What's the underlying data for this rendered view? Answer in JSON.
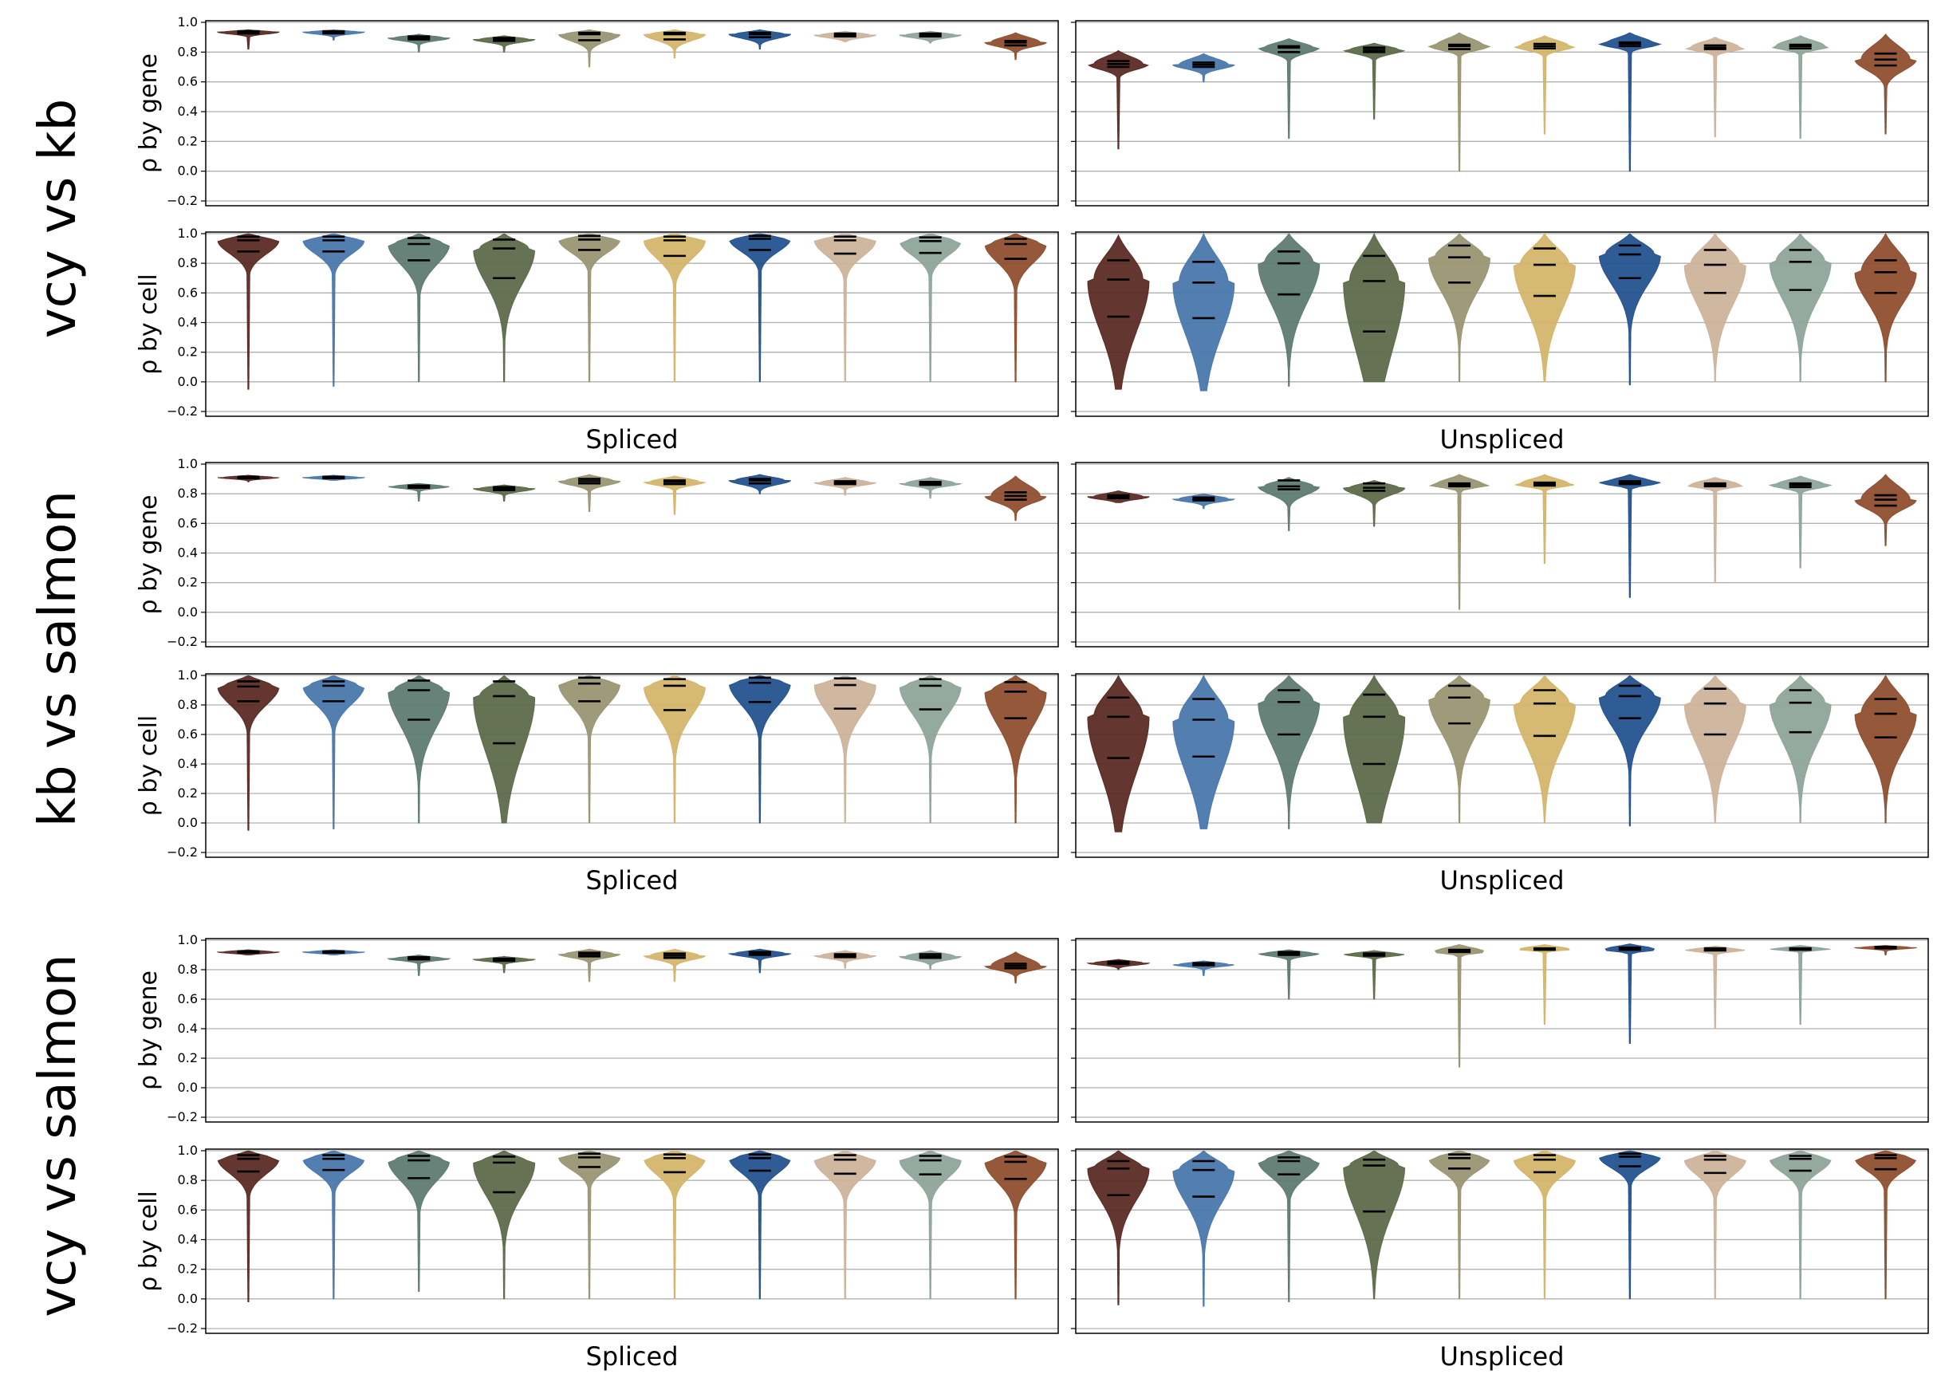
{
  "figure": {
    "colors": [
      "#5b2b24",
      "#4a78ac",
      "#5f7b72",
      "#5d6b4b",
      "#9a9673",
      "#d4b56a",
      "#24538e",
      "#cdb39b",
      "#8fa59a",
      "#8f4f2f"
    ],
    "ytick_labels": [
      "1.0",
      "0.8",
      "0.6",
      "0.4",
      "0.2",
      "0.0",
      "−0.2"
    ]
  },
  "chart_data": [
    {
      "type": "violin",
      "group": "vcy vs kb",
      "ylabel": "ρ by gene",
      "xlabel": "",
      "ylim": [
        -0.2,
        1.0
      ],
      "grid": true,
      "violins": [
        {
          "min": 0.82,
          "q25": 0.925,
          "median": 0.935,
          "q75": 0.94,
          "max": 0.95
        },
        {
          "min": 0.88,
          "q25": 0.925,
          "median": 0.935,
          "q75": 0.94,
          "max": 0.95
        },
        {
          "min": 0.8,
          "q25": 0.885,
          "median": 0.895,
          "q75": 0.905,
          "max": 0.92
        },
        {
          "min": 0.8,
          "q25": 0.875,
          "median": 0.885,
          "q75": 0.895,
          "max": 0.91
        },
        {
          "min": 0.7,
          "q25": 0.88,
          "median": 0.92,
          "q75": 0.93,
          "max": 0.95
        },
        {
          "min": 0.76,
          "q25": 0.885,
          "median": 0.92,
          "q75": 0.93,
          "max": 0.95
        },
        {
          "min": 0.82,
          "q25": 0.9,
          "median": 0.92,
          "q75": 0.93,
          "max": 0.95
        },
        {
          "min": 0.87,
          "q25": 0.905,
          "median": 0.915,
          "q75": 0.925,
          "max": 0.94
        },
        {
          "min": 0.86,
          "q25": 0.905,
          "median": 0.915,
          "q75": 0.925,
          "max": 0.94
        },
        {
          "min": 0.75,
          "q25": 0.845,
          "median": 0.865,
          "q75": 0.875,
          "max": 0.93
        }
      ]
    },
    {
      "type": "violin",
      "group": "vcy vs kb",
      "ylabel": "ρ by gene",
      "xlabel": "",
      "ylim": [
        -0.2,
        1.0
      ],
      "grid": true,
      "violins": [
        {
          "min": 0.15,
          "q25": 0.7,
          "median": 0.72,
          "q75": 0.74,
          "max": 0.81
        },
        {
          "min": 0.6,
          "q25": 0.7,
          "median": 0.715,
          "q75": 0.73,
          "max": 0.79
        },
        {
          "min": 0.22,
          "q25": 0.8,
          "median": 0.83,
          "q75": 0.84,
          "max": 0.89
        },
        {
          "min": 0.35,
          "q25": 0.8,
          "median": 0.815,
          "q75": 0.83,
          "max": 0.86
        },
        {
          "min": 0.0,
          "q25": 0.82,
          "median": 0.84,
          "q75": 0.85,
          "max": 0.93
        },
        {
          "min": 0.25,
          "q25": 0.825,
          "median": 0.84,
          "q75": 0.855,
          "max": 0.91
        },
        {
          "min": 0.0,
          "q25": 0.84,
          "median": 0.855,
          "q75": 0.865,
          "max": 0.93
        },
        {
          "min": 0.23,
          "q25": 0.82,
          "median": 0.83,
          "q75": 0.845,
          "max": 0.9
        },
        {
          "min": 0.22,
          "q25": 0.825,
          "median": 0.84,
          "q75": 0.85,
          "max": 0.91
        },
        {
          "min": 0.25,
          "q25": 0.71,
          "median": 0.75,
          "q75": 0.79,
          "max": 0.92
        }
      ]
    },
    {
      "type": "violin",
      "group": "vcy vs kb",
      "ylabel": "ρ by cell",
      "xlabel": "Spliced",
      "ylim": [
        -0.2,
        1.0
      ],
      "grid": true,
      "violins": [
        {
          "min": -0.05,
          "q25": 0.88,
          "median": 0.955,
          "q75": 0.98,
          "max": 1.0
        },
        {
          "min": -0.03,
          "q25": 0.88,
          "median": 0.955,
          "q75": 0.98,
          "max": 1.0
        },
        {
          "min": 0.0,
          "q25": 0.82,
          "median": 0.93,
          "q75": 0.97,
          "max": 1.0
        },
        {
          "min": 0.0,
          "q25": 0.7,
          "median": 0.9,
          "q75": 0.96,
          "max": 1.0
        },
        {
          "min": 0.0,
          "q25": 0.89,
          "median": 0.96,
          "q75": 0.985,
          "max": 1.0
        },
        {
          "min": 0.0,
          "q25": 0.85,
          "median": 0.955,
          "q75": 0.98,
          "max": 1.0
        },
        {
          "min": 0.0,
          "q25": 0.89,
          "median": 0.965,
          "q75": 0.985,
          "max": 1.0
        },
        {
          "min": 0.0,
          "q25": 0.865,
          "median": 0.955,
          "q75": 0.98,
          "max": 1.0
        },
        {
          "min": 0.0,
          "q25": 0.87,
          "median": 0.95,
          "q75": 0.975,
          "max": 1.0
        },
        {
          "min": 0.0,
          "q25": 0.83,
          "median": 0.93,
          "q75": 0.965,
          "max": 1.0
        }
      ]
    },
    {
      "type": "violin",
      "group": "vcy vs kb",
      "ylabel": "ρ by cell",
      "xlabel": "Unspliced",
      "ylim": [
        -0.2,
        1.0
      ],
      "grid": true,
      "violins": [
        {
          "min": -0.05,
          "q25": 0.44,
          "median": 0.69,
          "q75": 0.82,
          "max": 0.99
        },
        {
          "min": -0.06,
          "q25": 0.43,
          "median": 0.67,
          "q75": 0.81,
          "max": 1.0
        },
        {
          "min": -0.03,
          "q25": 0.59,
          "median": 0.8,
          "q75": 0.88,
          "max": 1.0
        },
        {
          "min": 0.0,
          "q25": 0.34,
          "median": 0.68,
          "q75": 0.85,
          "max": 1.0
        },
        {
          "min": 0.0,
          "q25": 0.67,
          "median": 0.84,
          "q75": 0.92,
          "max": 1.0
        },
        {
          "min": 0.0,
          "q25": 0.58,
          "median": 0.79,
          "q75": 0.9,
          "max": 1.0
        },
        {
          "min": -0.02,
          "q25": 0.7,
          "median": 0.86,
          "q75": 0.92,
          "max": 1.0
        },
        {
          "min": 0.0,
          "q25": 0.6,
          "median": 0.79,
          "q75": 0.89,
          "max": 1.0
        },
        {
          "min": 0.0,
          "q25": 0.62,
          "median": 0.81,
          "q75": 0.89,
          "max": 1.0
        },
        {
          "min": 0.0,
          "q25": 0.6,
          "median": 0.74,
          "q75": 0.82,
          "max": 1.0
        }
      ]
    },
    {
      "type": "violin",
      "group": "kb vs salmon",
      "ylabel": "ρ by gene",
      "xlabel": "",
      "ylim": [
        -0.2,
        1.0
      ],
      "grid": true,
      "violins": [
        {
          "min": 0.88,
          "q25": 0.905,
          "median": 0.91,
          "q75": 0.915,
          "max": 0.925
        },
        {
          "min": 0.89,
          "q25": 0.905,
          "median": 0.91,
          "q75": 0.915,
          "max": 0.925
        },
        {
          "min": 0.75,
          "q25": 0.84,
          "median": 0.85,
          "q75": 0.855,
          "max": 0.87
        },
        {
          "min": 0.75,
          "q25": 0.825,
          "median": 0.835,
          "q75": 0.845,
          "max": 0.86
        },
        {
          "min": 0.68,
          "q25": 0.87,
          "median": 0.885,
          "q75": 0.9,
          "max": 0.93
        },
        {
          "min": 0.66,
          "q25": 0.865,
          "median": 0.88,
          "q75": 0.89,
          "max": 0.92
        },
        {
          "min": 0.8,
          "q25": 0.87,
          "median": 0.89,
          "q75": 0.9,
          "max": 0.93
        },
        {
          "min": 0.79,
          "q25": 0.865,
          "median": 0.875,
          "q75": 0.885,
          "max": 0.91
        },
        {
          "min": 0.77,
          "q25": 0.86,
          "median": 0.87,
          "q75": 0.88,
          "max": 0.91
        },
        {
          "min": 0.62,
          "q25": 0.76,
          "median": 0.785,
          "q75": 0.81,
          "max": 0.92
        }
      ]
    },
    {
      "type": "violin",
      "group": "kb vs salmon",
      "ylabel": "ρ by gene",
      "xlabel": "",
      "ylim": [
        -0.2,
        1.0
      ],
      "grid": true,
      "violins": [
        {
          "min": 0.74,
          "q25": 0.77,
          "median": 0.78,
          "q75": 0.79,
          "max": 0.82
        },
        {
          "min": 0.7,
          "q25": 0.755,
          "median": 0.765,
          "q75": 0.775,
          "max": 0.8
        },
        {
          "min": 0.55,
          "q25": 0.83,
          "median": 0.85,
          "q75": 0.89,
          "max": 0.91
        },
        {
          "min": 0.58,
          "q25": 0.82,
          "median": 0.84,
          "q75": 0.87,
          "max": 0.89
        },
        {
          "min": 0.02,
          "q25": 0.85,
          "median": 0.86,
          "q75": 0.87,
          "max": 0.93
        },
        {
          "min": 0.33,
          "q25": 0.855,
          "median": 0.865,
          "q75": 0.875,
          "max": 0.93
        },
        {
          "min": 0.1,
          "q25": 0.865,
          "median": 0.875,
          "q75": 0.885,
          "max": 0.93
        },
        {
          "min": 0.2,
          "q25": 0.85,
          "median": 0.86,
          "q75": 0.87,
          "max": 0.91
        },
        {
          "min": 0.3,
          "q25": 0.845,
          "median": 0.86,
          "q75": 0.87,
          "max": 0.92
        },
        {
          "min": 0.45,
          "q25": 0.72,
          "median": 0.76,
          "q75": 0.79,
          "max": 0.93
        }
      ]
    },
    {
      "type": "violin",
      "group": "kb vs salmon",
      "ylabel": "ρ by cell",
      "xlabel": "Spliced",
      "ylim": [
        -0.2,
        1.0
      ],
      "grid": true,
      "violins": [
        {
          "min": -0.05,
          "q25": 0.825,
          "median": 0.925,
          "q75": 0.96,
          "max": 1.0
        },
        {
          "min": -0.04,
          "q25": 0.825,
          "median": 0.93,
          "q75": 0.96,
          "max": 1.0
        },
        {
          "min": 0.0,
          "q25": 0.7,
          "median": 0.9,
          "q75": 0.965,
          "max": 1.0
        },
        {
          "min": 0.0,
          "q25": 0.54,
          "median": 0.86,
          "q75": 0.96,
          "max": 1.0
        },
        {
          "min": 0.0,
          "q25": 0.825,
          "median": 0.945,
          "q75": 0.985,
          "max": 1.0
        },
        {
          "min": 0.0,
          "q25": 0.765,
          "median": 0.93,
          "q75": 0.975,
          "max": 1.0
        },
        {
          "min": 0.0,
          "q25": 0.82,
          "median": 0.95,
          "q75": 0.985,
          "max": 1.0
        },
        {
          "min": 0.0,
          "q25": 0.775,
          "median": 0.935,
          "q75": 0.98,
          "max": 1.0
        },
        {
          "min": 0.0,
          "q25": 0.77,
          "median": 0.93,
          "q75": 0.975,
          "max": 1.0
        },
        {
          "min": 0.0,
          "q25": 0.71,
          "median": 0.89,
          "q75": 0.955,
          "max": 1.0
        }
      ]
    },
    {
      "type": "violin",
      "group": "kb vs salmon",
      "ylabel": "ρ by cell",
      "xlabel": "Unspliced",
      "ylim": [
        -0.2,
        1.0
      ],
      "grid": true,
      "violins": [
        {
          "min": -0.06,
          "q25": 0.44,
          "median": 0.72,
          "q75": 0.85,
          "max": 1.0
        },
        {
          "min": -0.04,
          "q25": 0.45,
          "median": 0.7,
          "q75": 0.84,
          "max": 1.0
        },
        {
          "min": -0.04,
          "q25": 0.6,
          "median": 0.82,
          "q75": 0.9,
          "max": 1.0
        },
        {
          "min": 0.0,
          "q25": 0.4,
          "median": 0.72,
          "q75": 0.87,
          "max": 1.0
        },
        {
          "min": 0.0,
          "q25": 0.675,
          "median": 0.85,
          "q75": 0.93,
          "max": 1.0
        },
        {
          "min": 0.0,
          "q25": 0.59,
          "median": 0.81,
          "q75": 0.9,
          "max": 1.0
        },
        {
          "min": -0.02,
          "q25": 0.71,
          "median": 0.86,
          "q75": 0.93,
          "max": 1.0
        },
        {
          "min": 0.0,
          "q25": 0.6,
          "median": 0.81,
          "q75": 0.91,
          "max": 1.0
        },
        {
          "min": 0.0,
          "q25": 0.615,
          "median": 0.815,
          "q75": 0.9,
          "max": 1.0
        },
        {
          "min": 0.0,
          "q25": 0.58,
          "median": 0.74,
          "q75": 0.84,
          "max": 1.0
        }
      ]
    },
    {
      "type": "violin",
      "group": "vcy vs salmon",
      "ylabel": "ρ by gene",
      "xlabel": "",
      "ylim": [
        -0.2,
        1.0
      ],
      "grid": true,
      "violins": [
        {
          "min": 0.9,
          "q25": 0.915,
          "median": 0.92,
          "q75": 0.925,
          "max": 0.935
        },
        {
          "min": 0.9,
          "q25": 0.915,
          "median": 0.92,
          "q75": 0.925,
          "max": 0.935
        },
        {
          "min": 0.76,
          "q25": 0.87,
          "median": 0.875,
          "q75": 0.885,
          "max": 0.9
        },
        {
          "min": 0.78,
          "q25": 0.86,
          "median": 0.87,
          "q75": 0.875,
          "max": 0.89
        },
        {
          "min": 0.72,
          "q25": 0.89,
          "median": 0.905,
          "q75": 0.915,
          "max": 0.94
        },
        {
          "min": 0.72,
          "q25": 0.88,
          "median": 0.895,
          "q75": 0.91,
          "max": 0.94
        },
        {
          "min": 0.78,
          "q25": 0.9,
          "median": 0.91,
          "q75": 0.92,
          "max": 0.94
        },
        {
          "min": 0.81,
          "q25": 0.885,
          "median": 0.895,
          "q75": 0.905,
          "max": 0.93
        },
        {
          "min": 0.8,
          "q25": 0.88,
          "median": 0.89,
          "q75": 0.905,
          "max": 0.93
        },
        {
          "min": 0.71,
          "q25": 0.81,
          "median": 0.825,
          "q75": 0.84,
          "max": 0.92
        }
      ]
    },
    {
      "type": "violin",
      "group": "vcy vs salmon",
      "ylabel": "ρ by gene",
      "xlabel": "",
      "ylim": [
        -0.2,
        1.0
      ],
      "grid": true,
      "violins": [
        {
          "min": 0.8,
          "q25": 0.84,
          "median": 0.845,
          "q75": 0.855,
          "max": 0.87
        },
        {
          "min": 0.76,
          "q25": 0.83,
          "median": 0.835,
          "q75": 0.845,
          "max": 0.86
        },
        {
          "min": 0.6,
          "q25": 0.9,
          "median": 0.91,
          "q75": 0.92,
          "max": 0.935
        },
        {
          "min": 0.6,
          "q25": 0.895,
          "median": 0.905,
          "q75": 0.91,
          "max": 0.93
        },
        {
          "min": 0.14,
          "q25": 0.92,
          "median": 0.925,
          "q75": 0.935,
          "max": 0.97
        },
        {
          "min": 0.43,
          "q25": 0.935,
          "median": 0.94,
          "q75": 0.945,
          "max": 0.97
        },
        {
          "min": 0.3,
          "q25": 0.935,
          "median": 0.94,
          "q75": 0.95,
          "max": 0.975
        },
        {
          "min": 0.4,
          "q25": 0.93,
          "median": 0.935,
          "q75": 0.945,
          "max": 0.96
        },
        {
          "min": 0.43,
          "q25": 0.935,
          "median": 0.94,
          "q75": 0.945,
          "max": 0.965
        },
        {
          "min": 0.9,
          "q25": 0.945,
          "median": 0.95,
          "q75": 0.955,
          "max": 0.965
        }
      ]
    },
    {
      "type": "violin",
      "group": "vcy vs salmon",
      "ylabel": "ρ by cell",
      "xlabel": "Spliced",
      "ylim": [
        -0.2,
        1.0
      ],
      "grid": true,
      "violins": [
        {
          "min": -0.02,
          "q25": 0.86,
          "median": 0.945,
          "q75": 0.97,
          "max": 1.0
        },
        {
          "min": 0.0,
          "q25": 0.87,
          "median": 0.945,
          "q75": 0.97,
          "max": 1.0
        },
        {
          "min": 0.05,
          "q25": 0.815,
          "median": 0.935,
          "q75": 0.965,
          "max": 1.0
        },
        {
          "min": 0.0,
          "q25": 0.72,
          "median": 0.92,
          "q75": 0.96,
          "max": 1.0
        },
        {
          "min": 0.0,
          "q25": 0.89,
          "median": 0.955,
          "q75": 0.98,
          "max": 1.0
        },
        {
          "min": 0.0,
          "q25": 0.855,
          "median": 0.95,
          "q75": 0.975,
          "max": 1.0
        },
        {
          "min": 0.0,
          "q25": 0.865,
          "median": 0.95,
          "q75": 0.975,
          "max": 1.0
        },
        {
          "min": 0.0,
          "q25": 0.845,
          "median": 0.94,
          "q75": 0.97,
          "max": 1.0
        },
        {
          "min": 0.0,
          "q25": 0.84,
          "median": 0.935,
          "q75": 0.965,
          "max": 1.0
        },
        {
          "min": 0.0,
          "q25": 0.81,
          "median": 0.925,
          "q75": 0.96,
          "max": 1.0
        }
      ]
    },
    {
      "type": "violin",
      "group": "vcy vs salmon",
      "ylabel": "ρ by cell",
      "xlabel": "Unspliced",
      "ylim": [
        -0.2,
        1.0
      ],
      "grid": true,
      "violins": [
        {
          "min": -0.04,
          "q25": 0.7,
          "median": 0.88,
          "q75": 0.93,
          "max": 1.0
        },
        {
          "min": -0.05,
          "q25": 0.69,
          "median": 0.87,
          "q75": 0.93,
          "max": 1.0
        },
        {
          "min": -0.02,
          "q25": 0.84,
          "median": 0.93,
          "q75": 0.955,
          "max": 1.0
        },
        {
          "min": 0.0,
          "q25": 0.59,
          "median": 0.9,
          "q75": 0.94,
          "max": 1.0
        },
        {
          "min": 0.0,
          "q25": 0.88,
          "median": 0.95,
          "q75": 0.975,
          "max": 1.0
        },
        {
          "min": 0.0,
          "q25": 0.855,
          "median": 0.94,
          "q75": 0.97,
          "max": 1.0
        },
        {
          "min": 0.0,
          "q25": 0.895,
          "median": 0.96,
          "q75": 0.98,
          "max": 1.0
        },
        {
          "min": 0.0,
          "q25": 0.85,
          "median": 0.94,
          "q75": 0.965,
          "max": 1.0
        },
        {
          "min": 0.0,
          "q25": 0.865,
          "median": 0.945,
          "q75": 0.965,
          "max": 1.0
        },
        {
          "min": 0.0,
          "q25": 0.875,
          "median": 0.95,
          "q75": 0.97,
          "max": 1.0
        }
      ]
    }
  ]
}
